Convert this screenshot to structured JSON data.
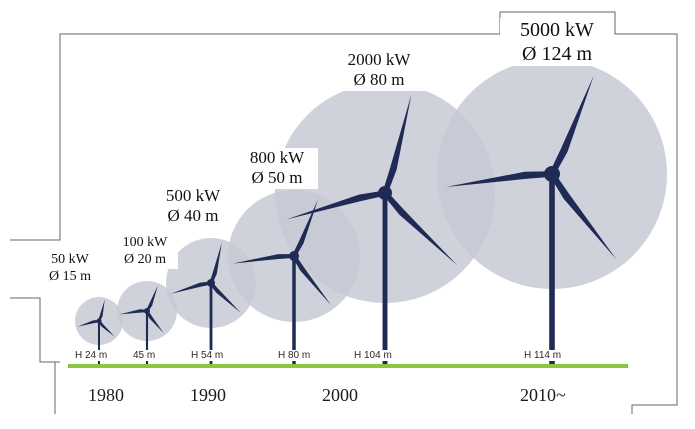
{
  "turbines": [
    {
      "power": "50 kW",
      "diameter": "Ø 15 m",
      "hub_height": "H 24 m"
    },
    {
      "power": "100 kW",
      "diameter": "Ø 20 m",
      "hub_height": "45 m"
    },
    {
      "power": "500 kW",
      "diameter": "Ø 40 m",
      "hub_height": "H 54 m"
    },
    {
      "power": "800 kW",
      "diameter": "Ø 50 m",
      "hub_height": "H 80 m"
    },
    {
      "power": "2000 kW",
      "diameter": "Ø 80 m",
      "hub_height": "H 104 m"
    },
    {
      "power": "5000 kW",
      "diameter": "Ø 124 m",
      "hub_height": "H 114 m"
    }
  ],
  "timeline": [
    "1980",
    "1990",
    "2000",
    "2010~"
  ],
  "colors": {
    "rotor_disc": "#c7cad3",
    "turbine": "#1f2a55",
    "ground_line": "#8cc63f",
    "outline": "#666666"
  }
}
